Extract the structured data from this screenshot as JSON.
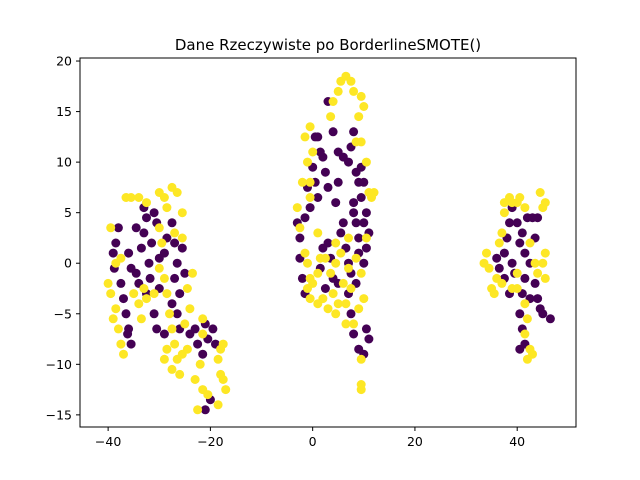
{
  "chart_data": {
    "type": "scatter",
    "title": "Dane Rzeczywiste po BorderlineSMOTE()",
    "xlabel": "",
    "ylabel": "",
    "xlim": [
      -45.5,
      51.5
    ],
    "ylim": [
      -16.2,
      20.3
    ],
    "x_ticks": [
      -40,
      -20,
      0,
      20,
      40
    ],
    "y_ticks": [
      -15,
      -10,
      -5,
      0,
      5,
      10,
      15,
      20
    ],
    "grid": false,
    "colors": {
      "class_0": "#440154",
      "class_1": "#fde725"
    },
    "series": [
      {
        "class": 0,
        "color": "#440154",
        "points": [
          [
            -38,
            3.5
          ],
          [
            -38.5,
            2
          ],
          [
            -39,
            1
          ],
          [
            -38.8,
            -0.5
          ],
          [
            -37.5,
            -2
          ],
          [
            -37,
            -3.5
          ],
          [
            -36.5,
            -5
          ],
          [
            -36,
            -6.5
          ],
          [
            -35.5,
            -8
          ],
          [
            -36.2,
            -7
          ],
          [
            -34,
            -2
          ],
          [
            -34.5,
            -1
          ],
          [
            -33.5,
            1.5
          ],
          [
            -33,
            3
          ],
          [
            -32.5,
            4.5
          ],
          [
            -33,
            5.5
          ],
          [
            -31,
            5
          ],
          [
            -30.5,
            4
          ],
          [
            -31.5,
            2
          ],
          [
            -32,
            0
          ],
          [
            -31.8,
            -1.5
          ],
          [
            -32.5,
            -3
          ],
          [
            -31,
            -5
          ],
          [
            -30.5,
            -6.5
          ],
          [
            -29,
            -7
          ],
          [
            -30,
            -2.5
          ],
          [
            -29,
            1
          ],
          [
            -28.5,
            2.5
          ],
          [
            -27.5,
            4
          ],
          [
            -27,
            2
          ],
          [
            -26.5,
            0
          ],
          [
            -27,
            -1.5
          ],
          [
            -26,
            -3
          ],
          [
            -26.5,
            -5
          ],
          [
            -26,
            -6.5
          ],
          [
            -25,
            -1
          ],
          [
            -25.5,
            1.5
          ],
          [
            -27.5,
            -4
          ],
          [
            -30,
            0.5
          ],
          [
            -34.5,
            3.5
          ],
          [
            -36,
            1
          ],
          [
            -35.5,
            -0.5
          ],
          [
            -21,
            -6
          ],
          [
            -20.5,
            -7.5
          ],
          [
            -19.5,
            -6.5
          ],
          [
            -19,
            -8
          ],
          [
            -21.5,
            -9
          ],
          [
            -22.5,
            -8
          ],
          [
            -20,
            -13.5
          ],
          [
            -21,
            -14.5
          ],
          [
            -23,
            -6.5
          ],
          [
            -24,
            -7
          ],
          [
            -3,
            4
          ],
          [
            -2.5,
            2.5
          ],
          [
            -2.5,
            0.5
          ],
          [
            -2,
            -1.5
          ],
          [
            -1.5,
            -3
          ],
          [
            -1,
            7.5
          ],
          [
            -0.5,
            5.5
          ],
          [
            -1.5,
            4.5
          ],
          [
            0,
            9.5
          ],
          [
            0.5,
            8
          ],
          [
            1,
            6.5
          ],
          [
            0.5,
            12.5
          ],
          [
            1,
            12.5
          ],
          [
            2,
            10.5
          ],
          [
            2.5,
            9
          ],
          [
            3,
            7.5
          ],
          [
            1.5,
            11
          ],
          [
            2,
            1.5
          ],
          [
            1.5,
            -0.5
          ],
          [
            2.5,
            -2.5
          ],
          [
            3.5,
            0.5
          ],
          [
            4,
            -1.5
          ],
          [
            3,
            2
          ],
          [
            3,
            16
          ],
          [
            4,
            13
          ],
          [
            5,
            11
          ],
          [
            6,
            10.5
          ],
          [
            7,
            10
          ],
          [
            7.5,
            11.5
          ],
          [
            8,
            13
          ],
          [
            8.5,
            9
          ],
          [
            9,
            8
          ],
          [
            9.5,
            9.5
          ],
          [
            10,
            8
          ],
          [
            8,
            6
          ],
          [
            8.5,
            4
          ],
          [
            9,
            2.5
          ],
          [
            8,
            5
          ],
          [
            6,
            4
          ],
          [
            6.5,
            1.5
          ],
          [
            7,
            0
          ],
          [
            7.5,
            -1
          ],
          [
            8.5,
            -2
          ],
          [
            9,
            1
          ],
          [
            10,
            0
          ],
          [
            10.5,
            1.5
          ],
          [
            10,
            4
          ],
          [
            10.5,
            5
          ],
          [
            11,
            3
          ],
          [
            7.5,
            -5
          ],
          [
            8,
            -7
          ],
          [
            9,
            -8.5
          ],
          [
            10,
            -9
          ],
          [
            10.5,
            -6.5
          ],
          [
            11,
            -7.5
          ],
          [
            7,
            -3
          ],
          [
            5,
            -2
          ],
          [
            5.5,
            3
          ],
          [
            9.5,
            6.5
          ],
          [
            4.5,
            6
          ],
          [
            5,
            8
          ],
          [
            36,
            0.5
          ],
          [
            36.5,
            -0.5
          ],
          [
            37.5,
            1
          ],
          [
            38,
            2.5
          ],
          [
            38.5,
            4
          ],
          [
            39,
            5.5
          ],
          [
            40,
            4
          ],
          [
            40.5,
            2
          ],
          [
            41,
            3
          ],
          [
            41.5,
            1
          ],
          [
            42,
            4.5
          ],
          [
            43,
            4.5
          ],
          [
            44,
            4.5
          ],
          [
            43.5,
            2.5
          ],
          [
            42.5,
            0
          ],
          [
            41.5,
            -1.5
          ],
          [
            41,
            -3
          ],
          [
            40.5,
            -5
          ],
          [
            41,
            -6.5
          ],
          [
            41.5,
            -8
          ],
          [
            40.5,
            -8.5
          ],
          [
            42.5,
            -3.5
          ],
          [
            43.5,
            -2
          ],
          [
            44,
            -3.5
          ],
          [
            44.5,
            -4.5
          ],
          [
            45,
            -5
          ],
          [
            46.5,
            -5.5
          ],
          [
            39.5,
            -1
          ],
          [
            38.5,
            -3
          ],
          [
            39,
            0
          ],
          [
            37.5,
            -1.5
          ]
        ]
      },
      {
        "class": 1,
        "color": "#fde725",
        "points": [
          [
            -39.5,
            3.5
          ],
          [
            -40,
            -2
          ],
          [
            -39.5,
            -3
          ],
          [
            -38.5,
            -4.5
          ],
          [
            -39,
            -5.5
          ],
          [
            -38,
            -6.5
          ],
          [
            -37.5,
            -8
          ],
          [
            -37,
            -9
          ],
          [
            -38.5,
            0
          ],
          [
            -37.5,
            0.5
          ],
          [
            -36.5,
            6.5
          ],
          [
            -35.5,
            6.5
          ],
          [
            -34,
            6.5
          ],
          [
            -32.5,
            6
          ],
          [
            -30,
            7
          ],
          [
            -29,
            6.5
          ],
          [
            -27.5,
            7.5
          ],
          [
            -26.5,
            7
          ],
          [
            -28.5,
            5.5
          ],
          [
            -25.5,
            5
          ],
          [
            -27,
            3
          ],
          [
            -25.5,
            2.5
          ],
          [
            -30,
            3.5
          ],
          [
            -29.5,
            2
          ],
          [
            -30,
            -0.5
          ],
          [
            -29,
            -1.5
          ],
          [
            -28.5,
            -3
          ],
          [
            -28,
            -5
          ],
          [
            -27.5,
            -6.5
          ],
          [
            -27,
            -8
          ],
          [
            -26.5,
            -9.5
          ],
          [
            -26,
            -11
          ],
          [
            -27.5,
            -10.5
          ],
          [
            -28.5,
            -8.5
          ],
          [
            -29,
            -9.5
          ],
          [
            -25.5,
            -9
          ],
          [
            -24.5,
            -8.5
          ],
          [
            -25,
            -6
          ],
          [
            -24,
            -4.5
          ],
          [
            -24.5,
            -2.5
          ],
          [
            -23.5,
            -1
          ],
          [
            -33.5,
            -5.5
          ],
          [
            -32.5,
            -3.5
          ],
          [
            -33,
            -2.5
          ],
          [
            -35,
            -3
          ],
          [
            -34,
            -4
          ],
          [
            -31,
            -3
          ],
          [
            -22,
            -10
          ],
          [
            -23,
            -11.5
          ],
          [
            -21.5,
            -12.5
          ],
          [
            -20.5,
            -13
          ],
          [
            -22.5,
            -14.5
          ],
          [
            -18.5,
            -14
          ],
          [
            -18,
            -11
          ],
          [
            -17,
            -12.5
          ],
          [
            -17.5,
            -11.5
          ],
          [
            -18,
            -8.5
          ],
          [
            -17.5,
            -8
          ],
          [
            -18.5,
            -9.5
          ],
          [
            -21.5,
            -5.5
          ],
          [
            -21.5,
            -7
          ],
          [
            -3,
            5.5
          ],
          [
            -2.5,
            3.5
          ],
          [
            -1.5,
            1
          ],
          [
            -1,
            0
          ],
          [
            -0.5,
            -1.5
          ],
          [
            -1,
            -2.5
          ],
          [
            -0.5,
            -3.5
          ],
          [
            0,
            -2
          ],
          [
            1,
            -1
          ],
          [
            1.5,
            0.5
          ],
          [
            2,
            -3.5
          ],
          [
            1,
            -4
          ],
          [
            3,
            -4.5
          ],
          [
            4,
            -3
          ],
          [
            3.5,
            -1
          ],
          [
            4.5,
            -5
          ],
          [
            5,
            -4
          ],
          [
            2.5,
            0.5
          ],
          [
            1,
            3
          ],
          [
            -0.5,
            8
          ],
          [
            -1,
            10
          ],
          [
            -1.5,
            12.5
          ],
          [
            -0.5,
            13.5
          ],
          [
            0,
            11
          ],
          [
            -2,
            8
          ],
          [
            -0.5,
            6.5
          ],
          [
            3.5,
            14.5
          ],
          [
            4,
            16
          ],
          [
            5,
            17
          ],
          [
            5.5,
            18
          ],
          [
            6.5,
            18.5
          ],
          [
            7.5,
            18
          ],
          [
            8,
            17
          ],
          [
            9.5,
            16.5
          ],
          [
            10,
            15.5
          ],
          [
            9,
            14.5
          ],
          [
            8.5,
            12
          ],
          [
            9.5,
            12
          ],
          [
            10.5,
            10
          ],
          [
            11,
            7
          ],
          [
            12,
            7
          ],
          [
            11.5,
            6.5
          ],
          [
            7,
            2.5
          ],
          [
            7,
            -0.5
          ],
          [
            6,
            -2
          ],
          [
            7.5,
            -2.5
          ],
          [
            8.5,
            0.5
          ],
          [
            9.5,
            -1
          ],
          [
            10,
            -3.5
          ],
          [
            9,
            -4.5
          ],
          [
            8,
            -6
          ],
          [
            6.5,
            -6
          ],
          [
            6.5,
            -4
          ],
          [
            10.5,
            2.5
          ],
          [
            9.5,
            -9.5
          ],
          [
            9.5,
            -12.5
          ],
          [
            9.5,
            -12
          ],
          [
            4.5,
            2
          ],
          [
            5.5,
            1
          ],
          [
            4.5,
            0
          ],
          [
            34,
            1
          ],
          [
            33.5,
            0
          ],
          [
            34.5,
            -0.5
          ],
          [
            35,
            -2.5
          ],
          [
            35.5,
            -3
          ],
          [
            36,
            -1.5
          ],
          [
            37,
            -2
          ],
          [
            36.5,
            2
          ],
          [
            37,
            3
          ],
          [
            37.5,
            5
          ],
          [
            37.5,
            6
          ],
          [
            38.5,
            6.5
          ],
          [
            39,
            6
          ],
          [
            40,
            6
          ],
          [
            40.5,
            6.5
          ],
          [
            41.5,
            5.5
          ],
          [
            42.5,
            2
          ],
          [
            43.5,
            0
          ],
          [
            44,
            -1
          ],
          [
            45,
            0
          ],
          [
            45.5,
            -1.5
          ],
          [
            45.5,
            1
          ],
          [
            45,
            5.5
          ],
          [
            45.5,
            6
          ],
          [
            44.5,
            7
          ],
          [
            40,
            -1
          ],
          [
            39,
            -2.5
          ],
          [
            40,
            -2.5
          ],
          [
            41.5,
            -4
          ],
          [
            42,
            -5.5
          ],
          [
            42.5,
            -8.5
          ],
          [
            43,
            -9
          ],
          [
            42,
            -9.5
          ],
          [
            41.5,
            -7
          ]
        ]
      }
    ]
  }
}
